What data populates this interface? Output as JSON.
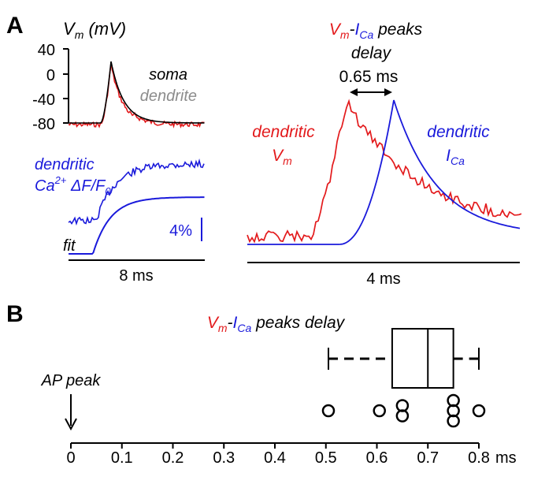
{
  "panel_labels": {
    "a": "A",
    "b": "B"
  },
  "colors": {
    "vm": "#e31a1c",
    "ica": "#1a1adb",
    "soma": "#000000",
    "dendrite_label": "#8c8c8c",
    "axis": "#000000"
  },
  "panel_a": {
    "voltage_axis_label": "V",
    "voltage_axis_sub": "m",
    "voltage_axis_unit": " (mV)",
    "voltage_ticks": [
      "40",
      "0",
      "-40",
      "-80"
    ],
    "soma_label": "soma",
    "dendrite_label": "dendrite",
    "calcium_label_line1": "dendritic",
    "calcium_label_ca": "Ca",
    "calcium_label_sup": "2+",
    "calcium_label_rest": " ΔF/F",
    "calcium_label_sub": "0",
    "scale_label": "4%",
    "fit_label": "fit",
    "left_time_scale": "8 ms",
    "title_vm": "V",
    "title_vm_sub": "m",
    "title_dash": "-",
    "title_ica": "I",
    "title_ica_sub": "Ca",
    "title_rest": " peaks",
    "delay_word": "delay",
    "delay_value": "0.65 ms",
    "dendritic_vm_line1": "dendritic",
    "dendritic_vm_v": "V",
    "dendritic_vm_sub": "m",
    "dendritic_ica_line1": "dendritic",
    "dendritic_ica_i": "I",
    "dendritic_ica_sub": "Ca",
    "right_time_scale": "4 ms"
  },
  "chart_data": {
    "type": "boxplot",
    "title_parts": [
      "V",
      "m",
      "-",
      "I",
      "Ca",
      " peaks delay"
    ],
    "x_unit": "ms",
    "xlim": [
      0,
      0.8
    ],
    "x_ticks": [
      "0",
      "0.1",
      "0.2",
      "0.3",
      "0.4",
      "0.5",
      "0.6",
      "0.7",
      "0.8"
    ],
    "annotation": "AP peak",
    "annotation_x": 0,
    "box": {
      "whisker_low": 0.505,
      "q1": 0.63,
      "median": 0.7,
      "q3": 0.75,
      "whisker_high": 0.8
    },
    "points": [
      0.505,
      0.605,
      0.65,
      0.65,
      0.75,
      0.75,
      0.75,
      0.8
    ]
  }
}
